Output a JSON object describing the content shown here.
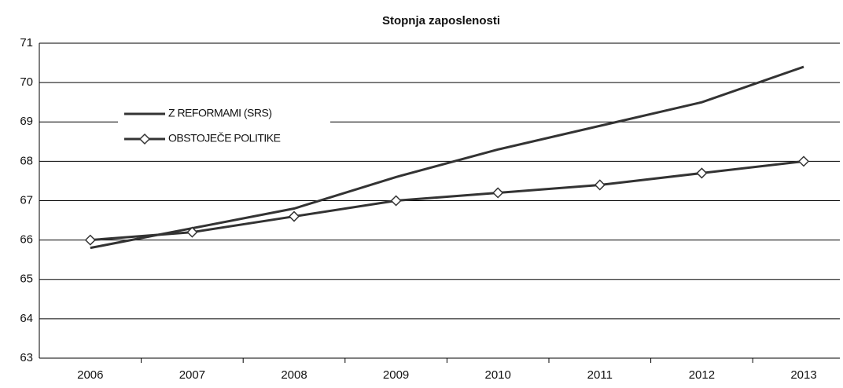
{
  "chart_data": {
    "type": "line",
    "title": "Stopnja zaposlenosti",
    "categories": [
      "2006",
      "2007",
      "2008",
      "2009",
      "2010",
      "2011",
      "2012",
      "2013"
    ],
    "series": [
      {
        "name": "Z REFORMAMI (SRS)",
        "color": "#333333",
        "marker": "none",
        "values": [
          65.8,
          66.3,
          66.8,
          67.6,
          68.3,
          68.9,
          69.5,
          70.4
        ]
      },
      {
        "name": "OBSTOJEČE POLITIKE",
        "color": "#333333",
        "marker": "diamond",
        "values": [
          66.0,
          66.2,
          66.6,
          67.0,
          67.2,
          67.4,
          67.7,
          68.0
        ]
      }
    ],
    "ylim": [
      63,
      71
    ],
    "yticks": [
      63,
      64,
      65,
      66,
      67,
      68,
      69,
      70,
      71
    ],
    "grid": true,
    "legend": "upper left"
  }
}
